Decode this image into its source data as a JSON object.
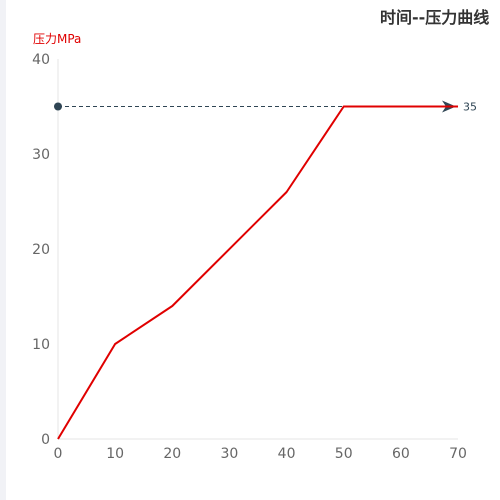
{
  "chart_data": {
    "type": "line",
    "title": "时间--压力曲线",
    "ylabel": "压力MPa",
    "xlabel": "",
    "xlim": [
      0,
      70
    ],
    "ylim": [
      0,
      40
    ],
    "x_ticks": [
      0,
      10,
      20,
      30,
      40,
      50,
      60,
      70
    ],
    "y_ticks": [
      0,
      10,
      20,
      30,
      40
    ],
    "grid": false,
    "series": [
      {
        "x": [
          0,
          10,
          20,
          40,
          50,
          70
        ],
        "values": [
          0,
          10,
          14,
          26,
          35,
          35
        ],
        "color": "#e00000"
      }
    ],
    "markLine": {
      "value": 35,
      "label": "35",
      "color": "#2f4554",
      "style": "dashed"
    }
  },
  "colors": {
    "series": "#e00000",
    "ylabel": "#e00000",
    "axis_text": "#666666",
    "axis_line": "#e6e6e6",
    "markline": "#2f4554"
  }
}
